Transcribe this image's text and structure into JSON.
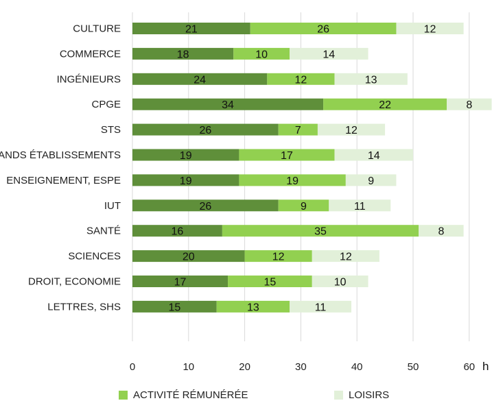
{
  "chart_data": {
    "type": "bar",
    "orientation": "horizontal",
    "stacked": true,
    "title": "",
    "xlabel": "",
    "ylabel": "",
    "x_unit": "h",
    "xlim": [
      0,
      60
    ],
    "x_ticks": [
      0,
      10,
      20,
      30,
      40,
      50,
      60
    ],
    "grid": "vertical",
    "categories": [
      "CULTURE",
      "COMMERCE",
      "INGÉNIEURS",
      "CPGE",
      "STS",
      "GRANDS ÉTABLISSEMENTS",
      "ENSEIGNEMENT, ESPE",
      "IUT",
      "SANTÉ",
      "SCIENCES",
      "DROIT, ECONOMIE",
      "LETTRES, SHS"
    ],
    "series": [
      {
        "name": "",
        "color": "#5f8f3a",
        "values": [
          21,
          18,
          24,
          34,
          26,
          19,
          19,
          26,
          16,
          20,
          17,
          15
        ]
      },
      {
        "name": "ACTIVITÉ RÉMUNÉRÉE",
        "color": "#92d050",
        "values": [
          26,
          10,
          12,
          22,
          7,
          17,
          19,
          9,
          35,
          12,
          15,
          13
        ]
      },
      {
        "name": "LOISIRS",
        "color": "#e2f0d9",
        "values": [
          12,
          14,
          13,
          8,
          12,
          14,
          9,
          11,
          8,
          12,
          10,
          11
        ]
      }
    ],
    "legend": "bottom"
  }
}
